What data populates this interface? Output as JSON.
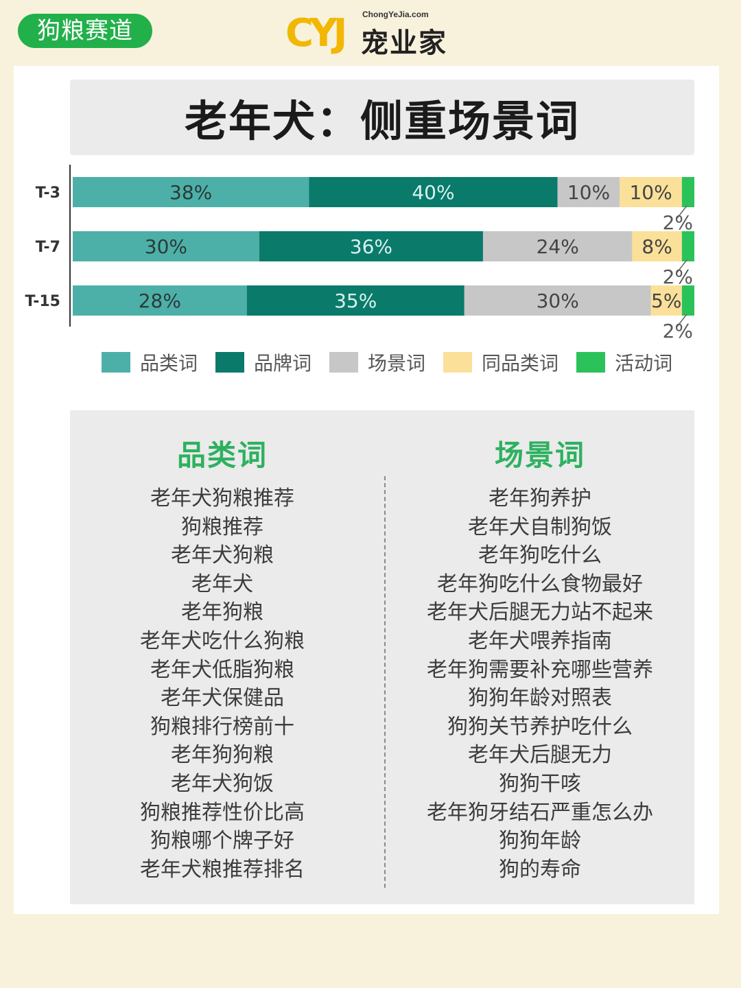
{
  "tag": "狗粮赛道",
  "logo": {
    "mark": "CYJ",
    "domain": "ChongYeJia.com",
    "name": "宠业家"
  },
  "title": "老年犬：侧重场景词",
  "colors": {
    "category": "#4db0a8",
    "brand": "#0a7a6b",
    "scene": "#c7c7c7",
    "similar": "#fbe09a",
    "activity": "#2bc25a"
  },
  "chart_data": {
    "type": "bar",
    "stacked": true,
    "normalized": true,
    "orientation": "horizontal",
    "categories": [
      "T-3",
      "T-7",
      "T-15"
    ],
    "series": [
      {
        "name": "品类词",
        "values": [
          38,
          30,
          28
        ],
        "labels": [
          "38%",
          "30%",
          "28%"
        ]
      },
      {
        "name": "品牌词",
        "values": [
          40,
          36,
          35
        ],
        "labels": [
          "40%",
          "36%",
          "35%"
        ]
      },
      {
        "name": "场景词",
        "values": [
          10,
          24,
          30
        ],
        "labels": [
          "10%",
          "24%",
          "30%"
        ]
      },
      {
        "name": "同品类词",
        "values": [
          10,
          8,
          5
        ],
        "labels": [
          "10%",
          "8%",
          "5%"
        ]
      },
      {
        "name": "活动词",
        "values": [
          2,
          2,
          2
        ],
        "labels": [
          "2%",
          "2%",
          "2%"
        ]
      }
    ],
    "xlim": [
      0,
      100
    ],
    "legend": "bottom"
  },
  "words": {
    "left_title": "品类词",
    "left": [
      "老年犬狗粮推荐",
      "狗粮推荐",
      "老年犬狗粮",
      "老年犬",
      "老年狗粮",
      "老年犬吃什么狗粮",
      "老年犬低脂狗粮",
      "老年犬保健品",
      "狗粮排行榜前十",
      "老年狗狗粮",
      "老年犬狗饭",
      "狗粮推荐性价比高",
      "狗粮哪个牌子好",
      "老年犬粮推荐排名"
    ],
    "right_title": "场景词",
    "right": [
      "老年狗养护",
      "老年犬自制狗饭",
      "老年狗吃什么",
      "老年狗吃什么食物最好",
      "老年犬后腿无力站不起来",
      "老年犬喂养指南",
      "老年狗需要补充哪些营养",
      "狗狗年龄对照表",
      "狗狗关节养护吃什么",
      "老年犬后腿无力",
      "狗狗干咳",
      "老年狗牙结石严重怎么办",
      "狗狗年龄",
      "狗的寿命"
    ]
  }
}
